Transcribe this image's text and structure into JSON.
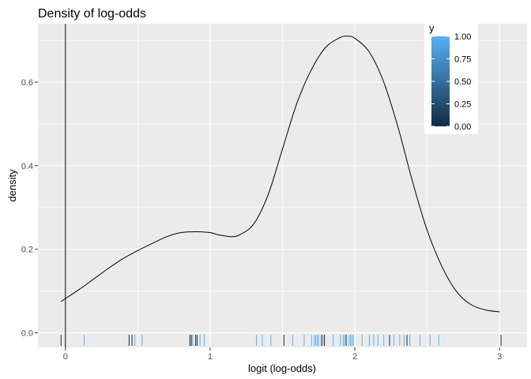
{
  "chart_data": {
    "type": "density",
    "title": "Density of log-odds",
    "xlabel": "logit (log-odds)",
    "ylabel": "density",
    "xlim": [
      -0.19,
      3.19
    ],
    "ylim": [
      -0.035,
      0.74
    ],
    "x_ticks": [
      {
        "value": 0,
        "label": "0"
      },
      {
        "value": 1,
        "label": "1"
      },
      {
        "value": 2,
        "label": "2"
      },
      {
        "value": 3,
        "label": "3"
      }
    ],
    "y_ticks": [
      {
        "value": 0.0,
        "label": "0.0"
      },
      {
        "value": 0.2,
        "label": "0.2"
      },
      {
        "value": 0.4,
        "label": "0.4"
      },
      {
        "value": 0.6,
        "label": "0.6"
      }
    ],
    "grid": true,
    "reference_line_x": 0,
    "density_curve": {
      "x": [
        -0.03,
        0.1,
        0.2,
        0.3,
        0.4,
        0.5,
        0.6,
        0.7,
        0.8,
        0.9,
        1.0,
        1.05,
        1.1,
        1.15,
        1.2,
        1.3,
        1.4,
        1.5,
        1.6,
        1.7,
        1.8,
        1.9,
        1.95,
        2.0,
        2.1,
        2.2,
        2.3,
        2.4,
        2.5,
        2.6,
        2.7,
        2.8,
        2.9,
        3.0
      ],
      "y": [
        0.075,
        0.105,
        0.13,
        0.155,
        0.178,
        0.197,
        0.214,
        0.23,
        0.24,
        0.242,
        0.24,
        0.235,
        0.232,
        0.23,
        0.234,
        0.26,
        0.33,
        0.44,
        0.55,
        0.63,
        0.684,
        0.707,
        0.71,
        0.705,
        0.672,
        0.6,
        0.49,
        0.36,
        0.245,
        0.16,
        0.1,
        0.068,
        0.055,
        0.05
      ]
    },
    "rug": {
      "x": [
        -0.03,
        0.13,
        0.44,
        0.46,
        0.48,
        0.53,
        0.86,
        0.87,
        0.88,
        0.9,
        0.91,
        0.93,
        0.96,
        1.32,
        1.36,
        1.42,
        1.51,
        1.57,
        1.65,
        1.7,
        1.72,
        1.73,
        1.74,
        1.75,
        1.77,
        1.78,
        1.79,
        1.85,
        1.9,
        1.92,
        1.93,
        1.94,
        1.96,
        1.97,
        1.98,
        1.99,
        2.05,
        2.1,
        2.13,
        2.16,
        2.2,
        2.24,
        2.27,
        2.31,
        2.34,
        2.36,
        2.38,
        2.45,
        2.52,
        2.58,
        3.01
      ],
      "y": [
        0,
        1,
        0,
        0,
        1,
        1,
        0,
        0,
        1,
        0,
        0,
        1,
        1,
        1,
        1,
        1,
        0,
        1,
        1,
        1,
        1,
        1,
        1,
        1,
        0,
        1,
        0,
        1,
        1,
        1,
        1,
        0,
        1,
        1,
        1,
        1,
        1,
        1,
        1,
        1,
        1,
        0,
        1,
        1,
        1,
        0,
        1,
        1,
        1,
        1,
        0
      ]
    },
    "legend": {
      "title": "y",
      "type": "colorbar",
      "placement": "top-right",
      "labels": [
        "1.00",
        "0.75",
        "0.50",
        "0.25",
        "0.00"
      ],
      "ticks": [
        1.0,
        0.75,
        0.5,
        0.25,
        0.0
      ],
      "range": [
        0,
        1
      ],
      "color_low": "#132b43",
      "color_high": "#56b1f7"
    },
    "colors": {
      "panel_background": "#ebebeb",
      "grid": "#ffffff",
      "curve": "#000000"
    }
  }
}
